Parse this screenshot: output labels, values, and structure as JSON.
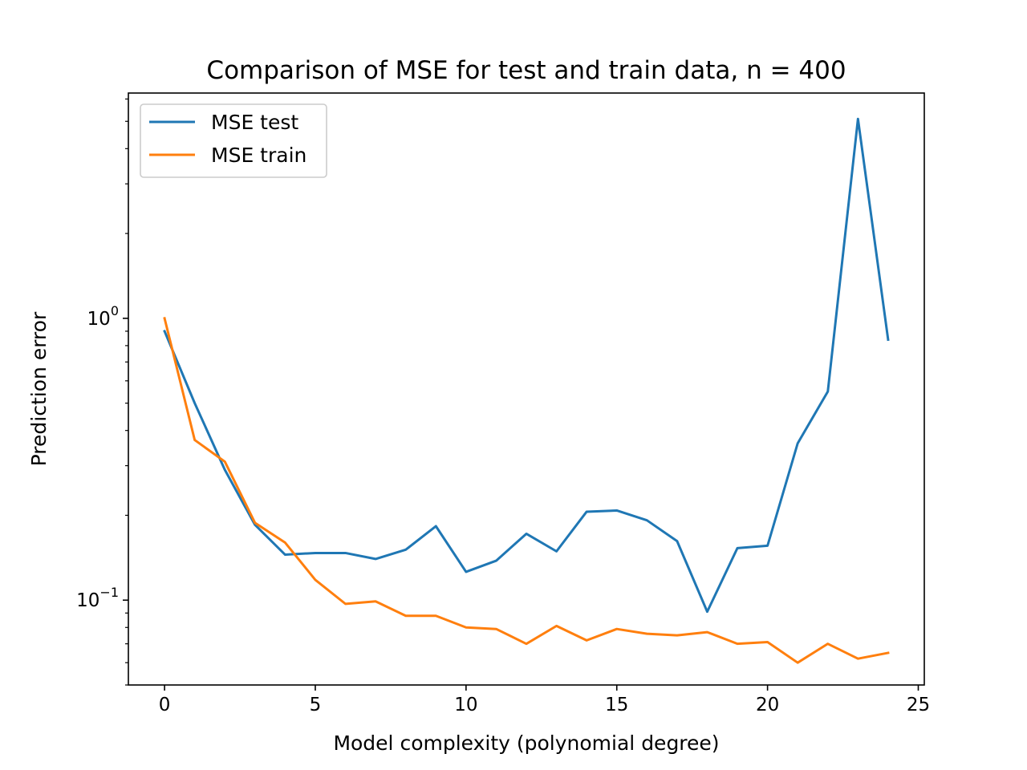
{
  "chart_data": {
    "type": "line",
    "title": "Comparison of MSE for test and train data, n = 400",
    "xlabel": "Model complexity (polynomial degree)",
    "ylabel": "Prediction error",
    "xlim": [
      -1.2,
      25.2
    ],
    "ylim": [
      0.05,
      6.3
    ],
    "yscale": "log",
    "x_ticks": [
      0,
      5,
      10,
      15,
      20,
      25
    ],
    "x_tick_labels": [
      "0",
      "5",
      "10",
      "15",
      "20",
      "25"
    ],
    "y_major_ticks": [
      0.1,
      1
    ],
    "y_tick_labels": [
      {
        "base": "10",
        "exp": "−1"
      },
      {
        "base": "10",
        "exp": "0"
      }
    ],
    "y_minor_ticks": [
      0.05,
      0.06,
      0.07,
      0.08,
      0.09,
      0.2,
      0.3,
      0.4,
      0.5,
      0.6,
      0.7,
      0.8,
      0.9,
      2,
      3,
      4,
      5,
      6
    ],
    "x": [
      0,
      1,
      2,
      3,
      4,
      5,
      6,
      7,
      8,
      9,
      10,
      11,
      12,
      13,
      14,
      15,
      16,
      17,
      18,
      19,
      20,
      21,
      22,
      23,
      24
    ],
    "series": [
      {
        "name": "MSE test",
        "color": "#1f77b4",
        "values": [
          0.9,
          0.5,
          0.29,
          0.185,
          0.145,
          0.147,
          0.147,
          0.14,
          0.151,
          0.183,
          0.126,
          0.138,
          0.172,
          0.149,
          0.206,
          0.208,
          0.192,
          0.162,
          0.091,
          0.153,
          0.156,
          0.36,
          0.55,
          5.1,
          0.84
        ]
      },
      {
        "name": "MSE train",
        "color": "#ff7f0e",
        "values": [
          1.0,
          0.37,
          0.31,
          0.188,
          0.16,
          0.118,
          0.097,
          0.099,
          0.088,
          0.088,
          0.08,
          0.079,
          0.07,
          0.081,
          0.072,
          0.079,
          0.076,
          0.075,
          0.077,
          0.07,
          0.071,
          0.06,
          0.07,
          0.062,
          0.065
        ]
      }
    ],
    "legend": {
      "position": "upper-left"
    },
    "grid": false
  }
}
